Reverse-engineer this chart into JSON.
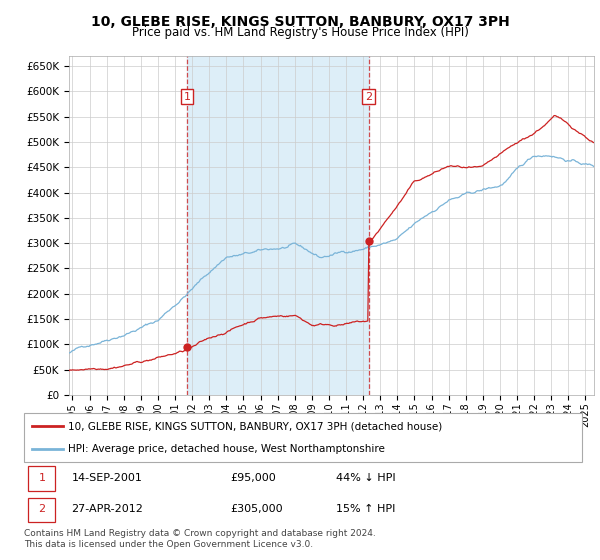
{
  "title": "10, GLEBE RISE, KINGS SUTTON, BANBURY, OX17 3PH",
  "subtitle": "Price paid vs. HM Land Registry's House Price Index (HPI)",
  "hpi_color": "#7ab4d8",
  "price_color": "#cc2222",
  "bg_color": "#ddeef8",
  "purchase1_date": 2001.71,
  "purchase1_price": 95000,
  "purchase2_date": 2012.32,
  "purchase2_price": 305000,
  "ylim": [
    0,
    670000
  ],
  "xlim": [
    1994.8,
    2025.5
  ],
  "legend_label_price": "10, GLEBE RISE, KINGS SUTTON, BANBURY, OX17 3PH (detached house)",
  "legend_label_hpi": "HPI: Average price, detached house, West Northamptonshire",
  "table_row1": [
    "1",
    "14-SEP-2001",
    "£95,000",
    "44% ↓ HPI"
  ],
  "table_row2": [
    "2",
    "27-APR-2012",
    "£305,000",
    "15% ↑ HPI"
  ],
  "footer": "Contains HM Land Registry data © Crown copyright and database right 2024.\nThis data is licensed under the Open Government Licence v3.0.",
  "yticks": [
    0,
    50000,
    100000,
    150000,
    200000,
    250000,
    300000,
    350000,
    400000,
    450000,
    500000,
    550000,
    600000,
    650000
  ],
  "xticks": [
    1995,
    1996,
    1997,
    1998,
    1999,
    2000,
    2001,
    2002,
    2003,
    2004,
    2005,
    2006,
    2007,
    2008,
    2009,
    2010,
    2011,
    2012,
    2013,
    2014,
    2015,
    2016,
    2017,
    2018,
    2019,
    2020,
    2021,
    2022,
    2023,
    2024,
    2025
  ]
}
